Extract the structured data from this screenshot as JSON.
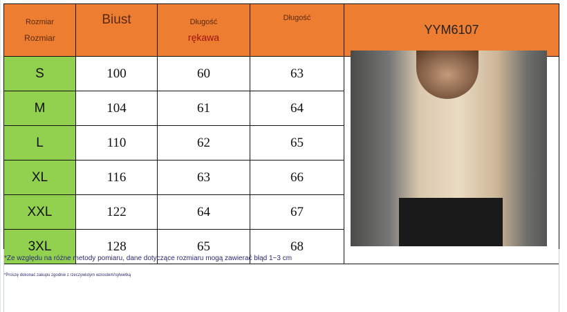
{
  "header": {
    "col1_top": "Rozmiar",
    "col1_bottom": "Rozmiar",
    "col2": "Biust",
    "col3_top": "Długość",
    "col3_bottom": "rękawa",
    "col4_top": "Długość",
    "model": "YYM6107"
  },
  "rows": [
    {
      "size": "S",
      "bust": "100",
      "sleeve": "60",
      "length": "63"
    },
    {
      "size": "M",
      "bust": "104",
      "sleeve": "61",
      "length": "64"
    },
    {
      "size": "L",
      "bust": "110",
      "sleeve": "62",
      "length": "65"
    },
    {
      "size": "XL",
      "bust": "116",
      "sleeve": "63",
      "length": "66"
    },
    {
      "size": "XXL",
      "bust": "122",
      "sleeve": "64",
      "length": "67"
    },
    {
      "size": "3XL",
      "bust": "128",
      "sleeve": "65",
      "length": "68"
    }
  ],
  "notes": {
    "note1": "*Ze względu na różne metody pomiaru, dane dotyczące rozmiaru mogą zawierać błąd 1~3 cm",
    "note2": "*Proszę dokonać zakupu zgodnie z rzeczywistym wzrostem/sylwetką"
  },
  "colors": {
    "header": "#ed7d31",
    "size_col": "#92d050"
  }
}
